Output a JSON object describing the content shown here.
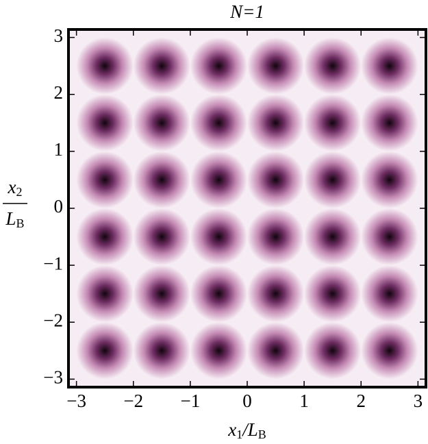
{
  "chart_data": {
    "type": "density",
    "title": "N=1",
    "x_label": [
      "x",
      "1",
      "/L",
      "B"
    ],
    "y_label_numerator": [
      "x",
      "2"
    ],
    "y_label_denominator": [
      "L",
      "B"
    ],
    "x": [
      -2.5,
      -1.5,
      -0.5,
      0.5,
      1.5,
      2.5
    ],
    "y": [
      -2.5,
      -1.5,
      -0.5,
      0.5,
      1.5,
      2.5
    ],
    "xlim": [
      -3.14,
      3.14
    ],
    "ylim": [
      -3.14,
      3.14
    ],
    "xticks": [
      {
        "value": -3,
        "label": "−3"
      },
      {
        "value": -2,
        "label": "−2"
      },
      {
        "value": -1,
        "label": "−1"
      },
      0,
      1,
      2,
      3
    ],
    "yticks": [
      {
        "value": -3,
        "label": "−3"
      },
      {
        "value": -2,
        "label": "−2"
      },
      {
        "value": -1,
        "label": "−1"
      },
      0,
      1,
      2,
      3
    ],
    "colors": [
      "#12040e",
      "#6e2d62",
      "#c48ab4",
      "#f6ecf3"
    ]
  }
}
